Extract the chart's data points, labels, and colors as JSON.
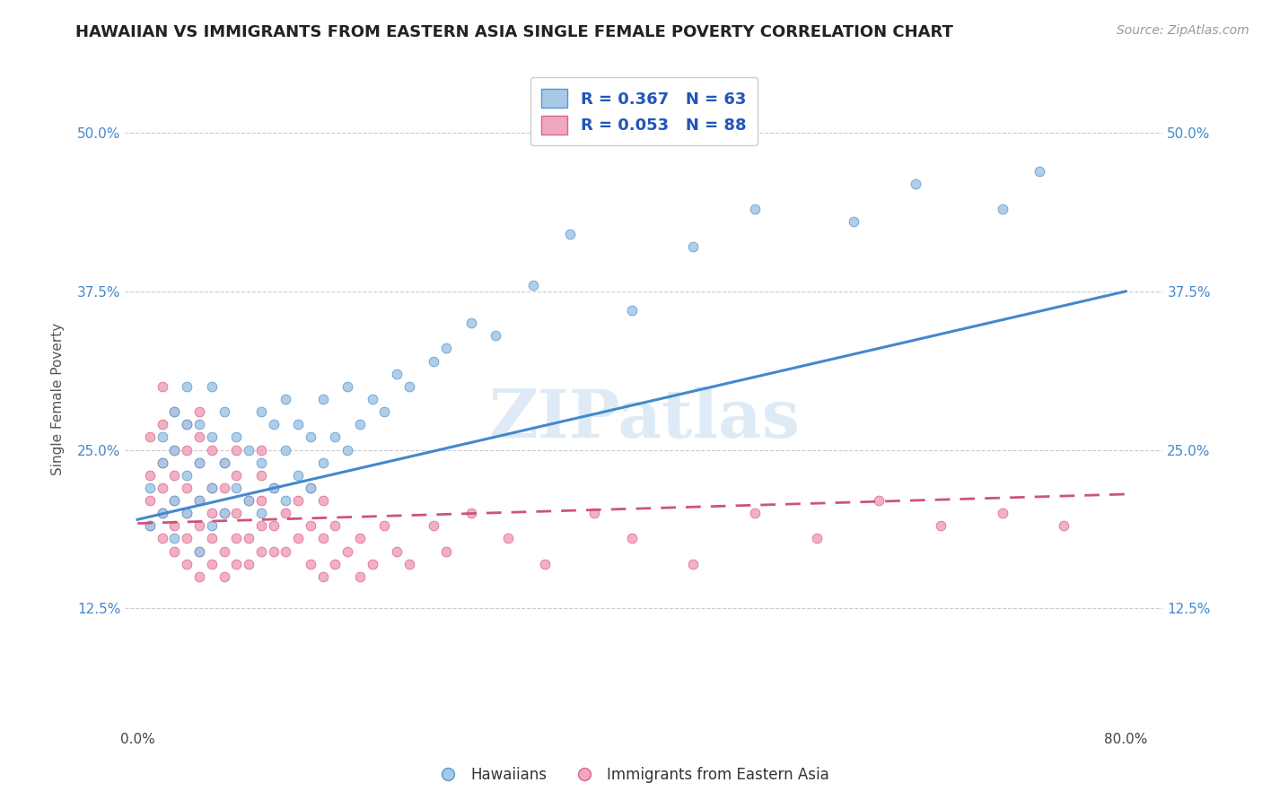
{
  "title": "HAWAIIAN VS IMMIGRANTS FROM EASTERN ASIA SINGLE FEMALE POVERTY CORRELATION CHART",
  "source": "Source: ZipAtlas.com",
  "ylabel": "Single Female Poverty",
  "xlim": [
    -0.01,
    0.83
  ],
  "ylim": [
    0.03,
    0.55
  ],
  "ytick_positions": [
    0.125,
    0.25,
    0.375,
    0.5
  ],
  "yticklabels": [
    "12.5%",
    "25.0%",
    "37.5%",
    "50.0%"
  ],
  "background_color": "#ffffff",
  "plot_bg_color": "#ffffff",
  "grid_color": "#cccccc",
  "hawaiian_color": "#a8c8e8",
  "immigrant_color": "#f0a8c0",
  "hawaiian_edge_color": "#5599cc",
  "immigrant_edge_color": "#dd6688",
  "hawaiian_line_color": "#4488cc",
  "immigrant_line_color": "#cc5577",
  "r_hawaiian": 0.367,
  "n_hawaiian": 63,
  "r_immigrant": 0.053,
  "n_immigrant": 88,
  "legend_label_1": "Hawaiians",
  "legend_label_2": "Immigrants from Eastern Asia",
  "watermark": "ZIPatlas",
  "hawaiian_x": [
    0.01,
    0.01,
    0.02,
    0.02,
    0.02,
    0.03,
    0.03,
    0.03,
    0.03,
    0.04,
    0.04,
    0.04,
    0.04,
    0.05,
    0.05,
    0.05,
    0.05,
    0.06,
    0.06,
    0.06,
    0.06,
    0.07,
    0.07,
    0.07,
    0.08,
    0.08,
    0.09,
    0.09,
    0.1,
    0.1,
    0.1,
    0.11,
    0.11,
    0.12,
    0.12,
    0.12,
    0.13,
    0.13,
    0.14,
    0.14,
    0.15,
    0.15,
    0.16,
    0.17,
    0.17,
    0.18,
    0.19,
    0.2,
    0.21,
    0.22,
    0.24,
    0.25,
    0.27,
    0.29,
    0.32,
    0.35,
    0.4,
    0.45,
    0.5,
    0.58,
    0.63,
    0.7,
    0.73
  ],
  "hawaiian_y": [
    0.19,
    0.22,
    0.2,
    0.24,
    0.26,
    0.18,
    0.21,
    0.25,
    0.28,
    0.2,
    0.23,
    0.27,
    0.3,
    0.17,
    0.21,
    0.24,
    0.27,
    0.19,
    0.22,
    0.26,
    0.3,
    0.2,
    0.24,
    0.28,
    0.22,
    0.26,
    0.21,
    0.25,
    0.2,
    0.24,
    0.28,
    0.22,
    0.27,
    0.21,
    0.25,
    0.29,
    0.23,
    0.27,
    0.22,
    0.26,
    0.24,
    0.29,
    0.26,
    0.25,
    0.3,
    0.27,
    0.29,
    0.28,
    0.31,
    0.3,
    0.32,
    0.33,
    0.35,
    0.34,
    0.38,
    0.42,
    0.36,
    0.41,
    0.44,
    0.43,
    0.46,
    0.44,
    0.47
  ],
  "immigrant_x": [
    0.01,
    0.01,
    0.01,
    0.01,
    0.02,
    0.02,
    0.02,
    0.02,
    0.02,
    0.02,
    0.03,
    0.03,
    0.03,
    0.03,
    0.03,
    0.03,
    0.04,
    0.04,
    0.04,
    0.04,
    0.04,
    0.04,
    0.05,
    0.05,
    0.05,
    0.05,
    0.05,
    0.05,
    0.05,
    0.06,
    0.06,
    0.06,
    0.06,
    0.06,
    0.07,
    0.07,
    0.07,
    0.07,
    0.07,
    0.08,
    0.08,
    0.08,
    0.08,
    0.08,
    0.09,
    0.09,
    0.09,
    0.1,
    0.1,
    0.1,
    0.1,
    0.1,
    0.11,
    0.11,
    0.11,
    0.12,
    0.12,
    0.13,
    0.13,
    0.14,
    0.14,
    0.14,
    0.15,
    0.15,
    0.15,
    0.16,
    0.16,
    0.17,
    0.18,
    0.18,
    0.19,
    0.2,
    0.21,
    0.22,
    0.24,
    0.25,
    0.27,
    0.3,
    0.33,
    0.37,
    0.4,
    0.45,
    0.5,
    0.55,
    0.6,
    0.65,
    0.7,
    0.75
  ],
  "immigrant_y": [
    0.19,
    0.21,
    0.23,
    0.26,
    0.18,
    0.2,
    0.22,
    0.24,
    0.27,
    0.3,
    0.17,
    0.19,
    0.21,
    0.23,
    0.25,
    0.28,
    0.16,
    0.18,
    0.2,
    0.22,
    0.25,
    0.27,
    0.15,
    0.17,
    0.19,
    0.21,
    0.24,
    0.26,
    0.28,
    0.16,
    0.18,
    0.2,
    0.22,
    0.25,
    0.15,
    0.17,
    0.2,
    0.22,
    0.24,
    0.16,
    0.18,
    0.2,
    0.23,
    0.25,
    0.16,
    0.18,
    0.21,
    0.17,
    0.19,
    0.21,
    0.23,
    0.25,
    0.17,
    0.19,
    0.22,
    0.17,
    0.2,
    0.18,
    0.21,
    0.16,
    0.19,
    0.22,
    0.15,
    0.18,
    0.21,
    0.16,
    0.19,
    0.17,
    0.15,
    0.18,
    0.16,
    0.19,
    0.17,
    0.16,
    0.19,
    0.17,
    0.2,
    0.18,
    0.16,
    0.2,
    0.18,
    0.16,
    0.2,
    0.18,
    0.21,
    0.19,
    0.2,
    0.19
  ],
  "hawaiian_line_x": [
    0.0,
    0.8
  ],
  "hawaiian_line_y": [
    0.195,
    0.375
  ],
  "immigrant_line_x": [
    0.0,
    0.8
  ],
  "immigrant_line_y": [
    0.192,
    0.215
  ]
}
